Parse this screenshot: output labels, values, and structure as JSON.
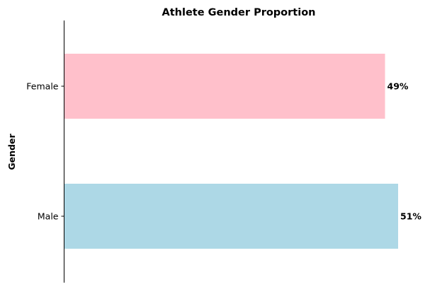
{
  "chart_data": {
    "type": "bar",
    "orientation": "horizontal",
    "title": "Athlete Gender Proportion",
    "xlabel": "",
    "ylabel": "Gender",
    "categories": [
      "Female",
      "Male"
    ],
    "values": [
      49,
      51
    ],
    "value_labels": [
      "49%",
      "51%"
    ],
    "colors": [
      "#ffc0cb",
      "#add8e6"
    ],
    "xlim": [
      0,
      51
    ],
    "grid": false,
    "legend": "none"
  }
}
